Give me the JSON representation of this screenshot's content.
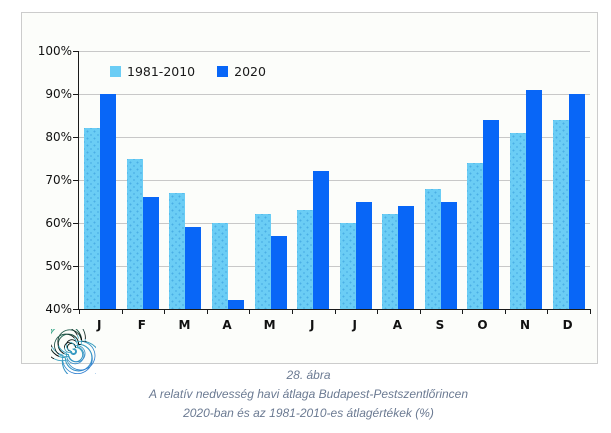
{
  "chart_data": {
    "type": "bar",
    "title": "",
    "categories": [
      "J",
      "F",
      "M",
      "A",
      "M",
      "J",
      "J",
      "A",
      "S",
      "O",
      "N",
      "D"
    ],
    "series": [
      {
        "name": "1981-2010",
        "color": "#6bcdf5",
        "values": [
          82,
          75,
          67,
          60,
          62,
          63,
          60,
          62,
          68,
          74,
          81,
          84
        ]
      },
      {
        "name": "2020",
        "color": "#0866f7",
        "values": [
          90,
          66,
          59,
          42,
          57,
          72,
          65,
          64,
          65,
          84,
          91,
          90
        ]
      }
    ],
    "ylim": [
      40,
      100
    ],
    "ytick_step": 10,
    "ytick_labels": [
      "100%",
      "90%",
      "80%",
      "70%",
      "60%",
      "50%",
      "40%"
    ],
    "grid": "horizontal",
    "legend_position": "top-inside"
  },
  "caption": {
    "line1": "28. ábra",
    "line2": "A relatív nedvesség havi átlaga Budapest-Pestszentlőrincen",
    "line3": "2020-ban és az 1981-2010-es átlagértékek (%)"
  },
  "icons": {
    "logo": "weather-service-swirl-logo"
  },
  "colors": {
    "series_light": "#6bcdf5",
    "series_dark": "#0866f7",
    "gridline": "#c8c8c8",
    "axis": "#1a1a1a",
    "box_border": "#cccccc",
    "box_background": "#fcfdfa",
    "caption_text": "#6b7a92",
    "logo_green": "#45bb9b",
    "logo_blue": "#2e7ed0"
  }
}
